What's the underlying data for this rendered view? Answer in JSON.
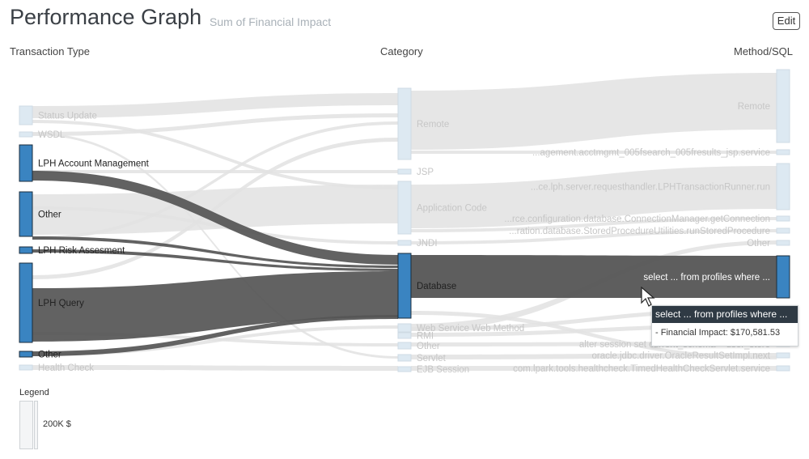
{
  "header": {
    "title": "Performance Graph",
    "subtitle": "Sum of Financial Impact",
    "edit_label": "Edit"
  },
  "columns": {
    "left": "Transaction Type",
    "middle": "Category",
    "right": "Method/SQL"
  },
  "colors": {
    "active_node": "#3a84c1",
    "inactive_node": "#dde9f2",
    "active_link": "#555555",
    "inactive_link": "#e2e2e2",
    "label_dim": "#c6c6c6",
    "label_active": "#222222"
  },
  "left_nodes": [
    {
      "label": "Status Update",
      "active": false
    },
    {
      "label": "WSDL",
      "active": false
    },
    {
      "label": "LPH Account Management",
      "active": true
    },
    {
      "label": "Other",
      "active": true
    },
    {
      "label": "LPH Risk Assesment",
      "active": true
    },
    {
      "label": "LPH Query",
      "active": true
    },
    {
      "label": "Other",
      "active": true
    },
    {
      "label": "Health Check",
      "active": false
    }
  ],
  "middle_nodes": [
    {
      "label": "Remote",
      "active": false
    },
    {
      "label": "JSP",
      "active": false
    },
    {
      "label": "Application Code",
      "active": false
    },
    {
      "label": "JNDI",
      "active": false
    },
    {
      "label": "Database",
      "active": true
    },
    {
      "label": "Web Service Web Method",
      "active": false
    },
    {
      "label": "RMI",
      "active": false
    },
    {
      "label": "Other",
      "active": false
    },
    {
      "label": "Servlet",
      "active": false
    },
    {
      "label": "EJB Session",
      "active": false
    }
  ],
  "right_nodes": [
    {
      "label": "Remote",
      "active": false
    },
    {
      "label": "...agement.acctmgmt_005fsearch_005fresults_jsp.service",
      "active": false
    },
    {
      "label": "...ce.lph.server.requesthandler.LPHTransactionRunner.run",
      "active": false
    },
    {
      "label": "...rce.configuration.database.ConnectionManager.getConnection",
      "active": false
    },
    {
      "label": "...ration.database.StoredProcedureUtilities.runStoredProcedure",
      "active": false
    },
    {
      "label": "Other",
      "active": false
    },
    {
      "label": "select ... from profiles where ...",
      "active": true
    },
    {
      "label": "alter sessio",
      "active": false
    },
    {
      "label": "alter session set c",
      "active": false
    },
    {
      "label": "alter session set current_schema = user_store",
      "active": false
    },
    {
      "label": "oracle.jdbc.driver.OracleResultSetImpl.next",
      "active": false
    },
    {
      "label": "com.lpark.tools.healthcheck.TimedHealthCheckServlet.service",
      "active": false
    }
  ],
  "legend": {
    "title": "Legend",
    "value": "200K $"
  },
  "tooltip": {
    "title": "select ... from profiles where ...",
    "detail": "- Financial Impact: $170,581.53"
  }
}
